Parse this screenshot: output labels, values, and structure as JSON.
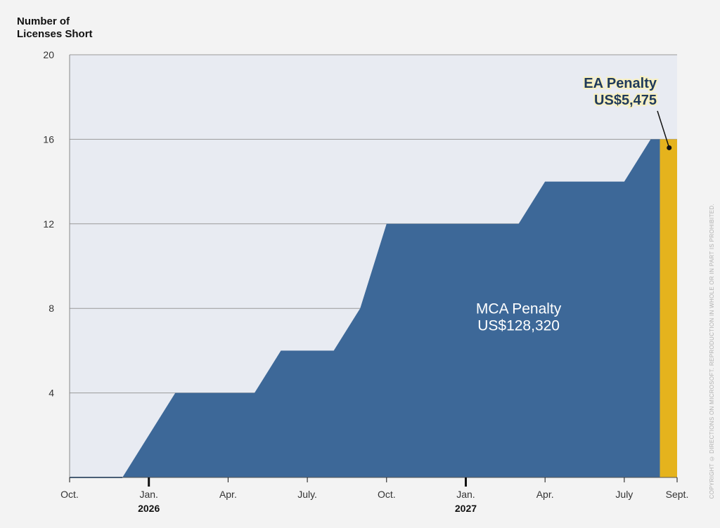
{
  "chart_data": {
    "type": "area",
    "ylabel_lines": [
      "Number of",
      "Licenses Short"
    ],
    "yticks": [
      4,
      8,
      12,
      16,
      20
    ],
    "ylim": [
      0,
      20
    ],
    "xlim": [
      0,
      23
    ],
    "xticks": [
      {
        "x": 0,
        "label": "Oct."
      },
      {
        "x": 3,
        "label": "Jan.",
        "major": true
      },
      {
        "x": 6,
        "label": "Apr."
      },
      {
        "x": 9,
        "label": "July."
      },
      {
        "x": 12,
        "label": "Oct."
      },
      {
        "x": 15,
        "label": "Jan.",
        "major": true
      },
      {
        "x": 18,
        "label": "Apr."
      },
      {
        "x": 21,
        "label": "July"
      },
      {
        "x": 23,
        "label": "Sept."
      }
    ],
    "years": [
      {
        "x": 3,
        "label": "2026"
      },
      {
        "x": 15,
        "label": "2027"
      }
    ],
    "series": [
      {
        "points": [
          [
            2,
            0
          ],
          [
            4,
            4
          ],
          [
            7,
            4
          ],
          [
            8,
            6
          ],
          [
            10,
            6
          ],
          [
            11,
            8
          ],
          [
            12,
            12
          ],
          [
            17,
            12
          ],
          [
            18,
            14
          ],
          [
            21,
            14
          ],
          [
            22,
            16
          ],
          [
            22.35,
            16
          ]
        ],
        "color": "#3d6898"
      },
      {
        "range": [
          22.35,
          23
        ],
        "value": 16,
        "color": "#e5b31d"
      }
    ],
    "annotations": {
      "mca": {
        "lines": [
          "MCA Penalty",
          "US$128,320"
        ],
        "x": 17,
        "y": 7.5
      },
      "ea": {
        "lines": [
          "EA Penalty",
          "US$5,475"
        ],
        "point": [
          22.7,
          15.6
        ]
      }
    },
    "plot_bg": "#e8ebf2",
    "grid": true
  },
  "copyright": "COPYRIGHT © DIRECTIONS ON MICROSOFT. REPRODUCTION IN WHOLE OR IN PART IS PROHIBITED."
}
